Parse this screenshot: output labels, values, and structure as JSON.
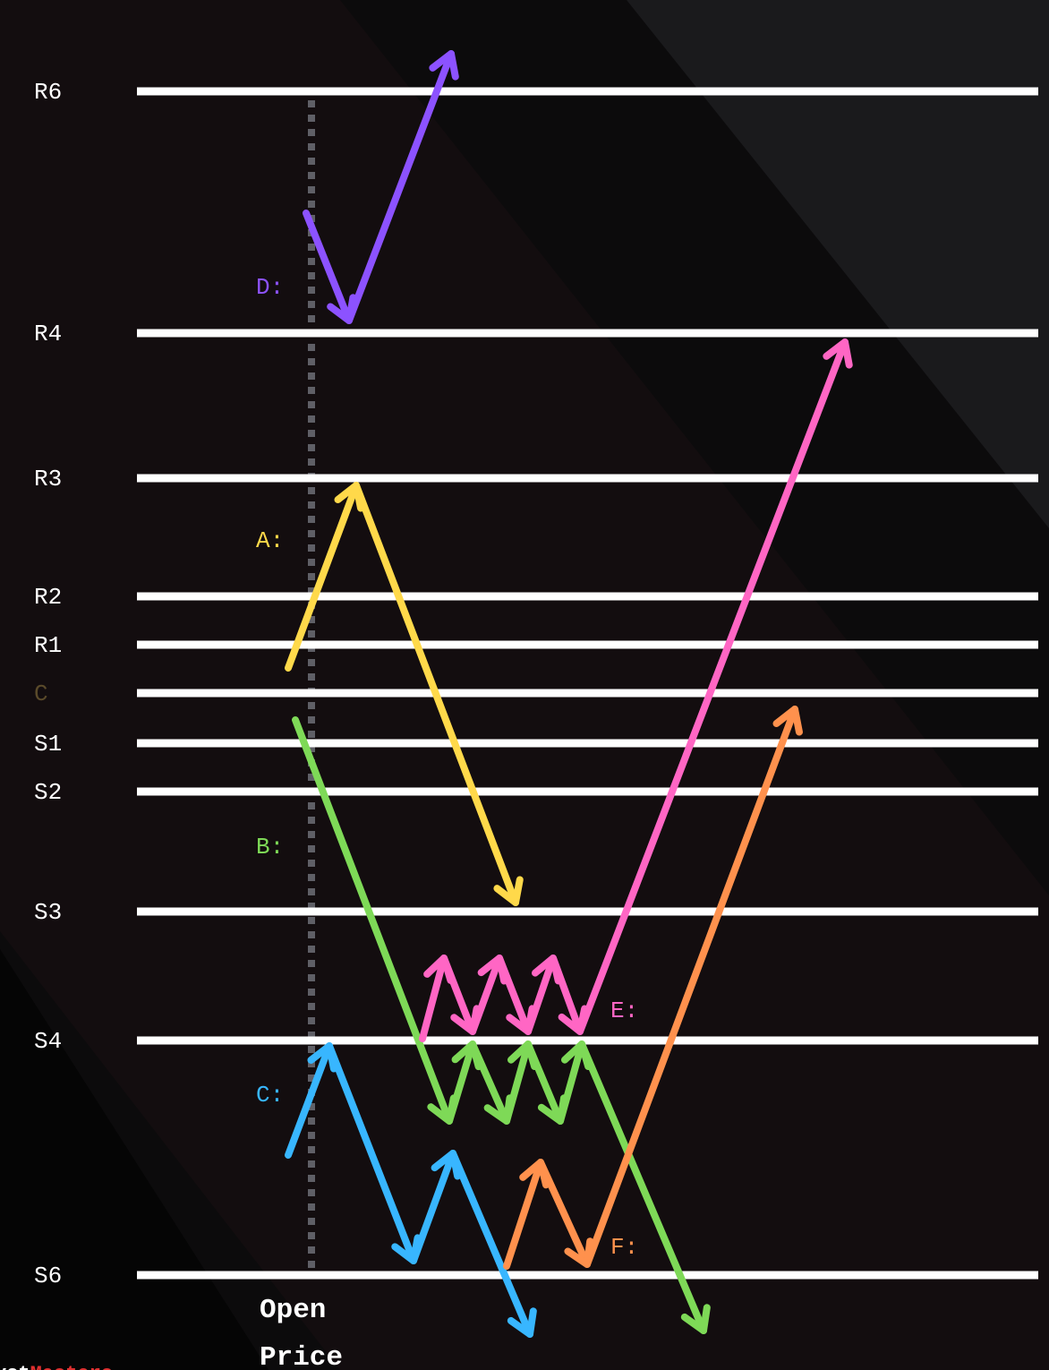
{
  "levels": [
    {
      "name": "R6",
      "color": "#ffffff"
    },
    {
      "name": "R4",
      "color": "#ffffff"
    },
    {
      "name": "R3",
      "color": "#ffffff"
    },
    {
      "name": "R2",
      "color": "#ffffff"
    },
    {
      "name": "R1",
      "color": "#ffffff"
    },
    {
      "name": "C",
      "color": "#5a4a2a"
    },
    {
      "name": "S1",
      "color": "#ffffff"
    },
    {
      "name": "S2",
      "color": "#ffffff"
    },
    {
      "name": "S3",
      "color": "#ffffff"
    },
    {
      "name": "S4",
      "color": "#ffffff"
    },
    {
      "name": "S6",
      "color": "#ffffff"
    }
  ],
  "scenarios": [
    {
      "label": "A:",
      "color": "#ffd94a"
    },
    {
      "label": "B:",
      "color": "#7ed957"
    },
    {
      "label": "C:",
      "color": "#38b6ff"
    },
    {
      "label": "D:",
      "color": "#8c52ff"
    },
    {
      "label": "E:",
      "color": "#ff66c4"
    },
    {
      "label": "F:",
      "color": "#ff914d"
    }
  ],
  "open_price": {
    "line1": "Open",
    "line2": "Price"
  },
  "logo": {
    "part1": "vot",
    "part2": "Masters",
    "color1": "#ffffff",
    "color2": "#e03030"
  }
}
